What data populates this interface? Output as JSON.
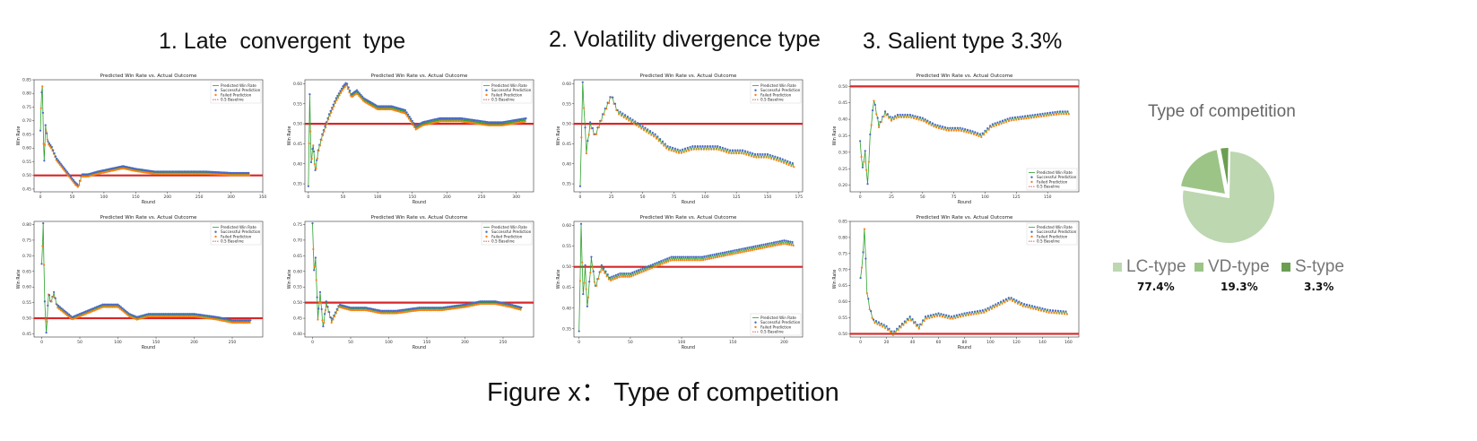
{
  "sections": [
    {
      "title": "1. Late  convergent  type"
    },
    {
      "title": "2. Volatility divergence type"
    },
    {
      "title": "3. Salient type 3.3%"
    }
  ],
  "caption": "Figure x： Type of competition",
  "pie": {
    "title": "Type of competition",
    "legend": [
      {
        "label": "LC-type",
        "pct": "77.4%",
        "color": "#bdd7b0"
      },
      {
        "label": "VD-type",
        "pct": "19.3%",
        "color": "#9cc487"
      },
      {
        "label": "S-type",
        "pct": "3.3%",
        "color": "#6b9e52"
      }
    ]
  },
  "colors": {
    "line": "#2ca02c",
    "success": "#4a68c8",
    "failed": "#ff7f0e",
    "baseline": "#d62728"
  },
  "chart_data": [
    {
      "type": "line",
      "title": "Predicted Win Rate vs. Actual Outcome",
      "xlabel": "Round",
      "ylabel": "Win Rate",
      "xlim": [
        -10,
        350
      ],
      "ylim": [
        0.44,
        0.85
      ],
      "xticks": [
        0,
        50,
        100,
        150,
        200,
        250,
        300,
        350
      ],
      "yticks": [
        0.45,
        0.5,
        0.55,
        0.6,
        0.65,
        0.7,
        0.75,
        0.8,
        0.85
      ],
      "legend_position": "top-right",
      "legend": [
        "Predicted Win Rate",
        "Successful Prediction",
        "Failed Prediction",
        "0.5 Baseline"
      ],
      "baseline": 0.5,
      "n": 330,
      "keypoints": [
        [
          0,
          0.66
        ],
        [
          1,
          0.75
        ],
        [
          2,
          0.8
        ],
        [
          3,
          0.83
        ],
        [
          5,
          0.62
        ],
        [
          6,
          0.55
        ],
        [
          8,
          0.68
        ],
        [
          12,
          0.62
        ],
        [
          18,
          0.6
        ],
        [
          25,
          0.56
        ],
        [
          35,
          0.53
        ],
        [
          45,
          0.5
        ],
        [
          55,
          0.47
        ],
        [
          60,
          0.46
        ],
        [
          65,
          0.5
        ],
        [
          75,
          0.5
        ],
        [
          90,
          0.51
        ],
        [
          110,
          0.52
        ],
        [
          130,
          0.53
        ],
        [
          150,
          0.52
        ],
        [
          180,
          0.51
        ],
        [
          220,
          0.51
        ],
        [
          260,
          0.51
        ],
        [
          300,
          0.505
        ],
        [
          330,
          0.505
        ]
      ]
    },
    {
      "type": "line",
      "title": "Predicted Win Rate vs. Actual Outcome",
      "xlabel": "Round",
      "ylabel": "Win Rate",
      "xlim": [
        -5,
        325
      ],
      "ylim": [
        0.33,
        0.61
      ],
      "xticks": [
        0,
        50,
        100,
        150,
        200,
        250,
        300
      ],
      "yticks": [
        0.35,
        0.4,
        0.45,
        0.5,
        0.55,
        0.6
      ],
      "legend_position": "top-right",
      "legend": [
        "Predicted Win Rate",
        "Successful Prediction",
        "Failed Prediction",
        "0.5 Baseline"
      ],
      "baseline": 0.5,
      "n": 315,
      "keypoints": [
        [
          0,
          0.34
        ],
        [
          2,
          0.57
        ],
        [
          4,
          0.4
        ],
        [
          7,
          0.45
        ],
        [
          10,
          0.38
        ],
        [
          14,
          0.43
        ],
        [
          20,
          0.47
        ],
        [
          30,
          0.52
        ],
        [
          40,
          0.56
        ],
        [
          50,
          0.59
        ],
        [
          55,
          0.6
        ],
        [
          62,
          0.57
        ],
        [
          70,
          0.58
        ],
        [
          80,
          0.56
        ],
        [
          90,
          0.55
        ],
        [
          100,
          0.54
        ],
        [
          120,
          0.54
        ],
        [
          140,
          0.53
        ],
        [
          155,
          0.49
        ],
        [
          165,
          0.5
        ],
        [
          190,
          0.51
        ],
        [
          220,
          0.51
        ],
        [
          260,
          0.5
        ],
        [
          280,
          0.5
        ],
        [
          315,
          0.51
        ]
      ]
    },
    {
      "type": "line",
      "title": "Predicted Win Rate vs. Actual Outcome",
      "xlabel": "Round",
      "ylabel": "Win Rate",
      "xlim": [
        -5,
        178
      ],
      "ylim": [
        0.33,
        0.61
      ],
      "xticks": [
        0,
        25,
        50,
        75,
        100,
        125,
        150,
        175
      ],
      "yticks": [
        0.35,
        0.4,
        0.45,
        0.5,
        0.55,
        0.6
      ],
      "legend_position": "top-right",
      "legend": [
        "Predicted Win Rate",
        "Successful Prediction",
        "Failed Prediction",
        "0.5 Baseline"
      ],
      "baseline": 0.5,
      "n": 172,
      "keypoints": [
        [
          0,
          0.34
        ],
        [
          2,
          0.6
        ],
        [
          5,
          0.43
        ],
        [
          8,
          0.5
        ],
        [
          12,
          0.47
        ],
        [
          18,
          0.52
        ],
        [
          25,
          0.57
        ],
        [
          30,
          0.53
        ],
        [
          40,
          0.51
        ],
        [
          50,
          0.49
        ],
        [
          60,
          0.47
        ],
        [
          70,
          0.44
        ],
        [
          80,
          0.43
        ],
        [
          90,
          0.44
        ],
        [
          100,
          0.44
        ],
        [
          110,
          0.44
        ],
        [
          120,
          0.43
        ],
        [
          130,
          0.43
        ],
        [
          140,
          0.42
        ],
        [
          150,
          0.42
        ],
        [
          160,
          0.41
        ],
        [
          172,
          0.395
        ]
      ]
    },
    {
      "type": "line",
      "title": "Predicted Win Rate vs. Actual Outcome",
      "xlabel": "Round",
      "ylabel": "Win Rate",
      "xlim": [
        -8,
        175
      ],
      "ylim": [
        0.18,
        0.52
      ],
      "xticks": [
        0,
        25,
        50,
        75,
        100,
        125,
        150
      ],
      "yticks": [
        0.2,
        0.25,
        0.3,
        0.35,
        0.4,
        0.45,
        0.5
      ],
      "legend_position": "bottom-right",
      "legend": [
        "Predicted Win Rate",
        "Successful Prediction",
        "Failed Prediction",
        "0.5 Baseline"
      ],
      "baseline": 0.5,
      "n": 168,
      "keypoints": [
        [
          0,
          0.33
        ],
        [
          2,
          0.25
        ],
        [
          4,
          0.3
        ],
        [
          6,
          0.2
        ],
        [
          8,
          0.35
        ],
        [
          11,
          0.46
        ],
        [
          15,
          0.38
        ],
        [
          20,
          0.42
        ],
        [
          25,
          0.4
        ],
        [
          30,
          0.41
        ],
        [
          40,
          0.41
        ],
        [
          50,
          0.4
        ],
        [
          60,
          0.38
        ],
        [
          70,
          0.37
        ],
        [
          80,
          0.37
        ],
        [
          90,
          0.36
        ],
        [
          97,
          0.35
        ],
        [
          105,
          0.38
        ],
        [
          120,
          0.4
        ],
        [
          140,
          0.41
        ],
        [
          160,
          0.42
        ],
        [
          168,
          0.42
        ]
      ]
    },
    {
      "type": "line",
      "title": "Predicted Win Rate vs. Actual Outcome",
      "xlabel": "Round",
      "ylabel": "Win Rate",
      "xlim": [
        -10,
        290
      ],
      "ylim": [
        0.44,
        0.81
      ],
      "xticks": [
        0,
        50,
        100,
        150,
        200,
        250
      ],
      "yticks": [
        0.45,
        0.5,
        0.55,
        0.6,
        0.65,
        0.7,
        0.75,
        0.8
      ],
      "legend_position": "top-right",
      "legend": [
        "Predicted Win Rate",
        "Successful Prediction",
        "Failed Prediction",
        "0.5 Baseline"
      ],
      "baseline": 0.5,
      "n": 275,
      "keypoints": [
        [
          0,
          0.67
        ],
        [
          2,
          0.8
        ],
        [
          4,
          0.55
        ],
        [
          6,
          0.45
        ],
        [
          9,
          0.58
        ],
        [
          12,
          0.55
        ],
        [
          16,
          0.58
        ],
        [
          20,
          0.54
        ],
        [
          30,
          0.52
        ],
        [
          40,
          0.5
        ],
        [
          50,
          0.51
        ],
        [
          60,
          0.52
        ],
        [
          80,
          0.54
        ],
        [
          100,
          0.54
        ],
        [
          115,
          0.51
        ],
        [
          125,
          0.5
        ],
        [
          140,
          0.51
        ],
        [
          170,
          0.51
        ],
        [
          200,
          0.51
        ],
        [
          230,
          0.5
        ],
        [
          250,
          0.49
        ],
        [
          275,
          0.49
        ]
      ]
    },
    {
      "type": "line",
      "title": "Predicted Win Rate vs. Actual Outcome",
      "xlabel": "Round",
      "ylabel": "Win Rate",
      "xlim": [
        -10,
        290
      ],
      "ylim": [
        0.39,
        0.76
      ],
      "xticks": [
        0,
        50,
        100,
        150,
        200,
        250
      ],
      "yticks": [
        0.4,
        0.45,
        0.5,
        0.55,
        0.6,
        0.65,
        0.7,
        0.75
      ],
      "legend_position": "top-right",
      "legend": [
        "Predicted Win Rate",
        "Successful Prediction",
        "Failed Prediction",
        "0.5 Baseline"
      ],
      "baseline": 0.5,
      "n": 275,
      "keypoints": [
        [
          0,
          0.75
        ],
        [
          2,
          0.6
        ],
        [
          4,
          0.64
        ],
        [
          7,
          0.45
        ],
        [
          10,
          0.53
        ],
        [
          14,
          0.42
        ],
        [
          18,
          0.5
        ],
        [
          25,
          0.44
        ],
        [
          35,
          0.49
        ],
        [
          50,
          0.48
        ],
        [
          70,
          0.48
        ],
        [
          90,
          0.47
        ],
        [
          110,
          0.47
        ],
        [
          140,
          0.48
        ],
        [
          170,
          0.48
        ],
        [
          200,
          0.49
        ],
        [
          220,
          0.5
        ],
        [
          240,
          0.5
        ],
        [
          260,
          0.49
        ],
        [
          275,
          0.48
        ]
      ]
    },
    {
      "type": "line",
      "title": "Predicted Win Rate vs. Actual Outcome",
      "xlabel": "Round",
      "ylabel": "Win Rate",
      "xlim": [
        -5,
        218
      ],
      "ylim": [
        0.33,
        0.61
      ],
      "xticks": [
        0,
        50,
        100,
        150,
        200
      ],
      "yticks": [
        0.35,
        0.4,
        0.45,
        0.5,
        0.55,
        0.6
      ],
      "legend_position": "bottom-right",
      "legend": [
        "Predicted Win Rate",
        "Successful Prediction",
        "Failed Prediction",
        "0.5 Baseline"
      ],
      "baseline": 0.5,
      "n": 210,
      "keypoints": [
        [
          0,
          0.34
        ],
        [
          2,
          0.6
        ],
        [
          4,
          0.43
        ],
        [
          6,
          0.5
        ],
        [
          8,
          0.4
        ],
        [
          12,
          0.52
        ],
        [
          16,
          0.45
        ],
        [
          22,
          0.5
        ],
        [
          30,
          0.47
        ],
        [
          40,
          0.48
        ],
        [
          50,
          0.48
        ],
        [
          60,
          0.49
        ],
        [
          70,
          0.5
        ],
        [
          80,
          0.51
        ],
        [
          90,
          0.52
        ],
        [
          100,
          0.52
        ],
        [
          120,
          0.52
        ],
        [
          140,
          0.53
        ],
        [
          160,
          0.54
        ],
        [
          180,
          0.55
        ],
        [
          200,
          0.56
        ],
        [
          210,
          0.555
        ]
      ]
    },
    {
      "type": "line",
      "title": "Predicted Win Rate vs. Actual Outcome",
      "xlabel": "Round",
      "ylabel": "Win Rate",
      "xlim": [
        -8,
        168
      ],
      "ylim": [
        0.49,
        0.85
      ],
      "xticks": [
        0,
        20,
        40,
        60,
        80,
        100,
        120,
        140,
        160
      ],
      "yticks": [
        0.5,
        0.55,
        0.6,
        0.65,
        0.7,
        0.75,
        0.8,
        0.85
      ],
      "legend_position": "top-right",
      "legend": [
        "Predicted Win Rate",
        "Successful Prediction",
        "Failed Prediction",
        "0.5 Baseline"
      ],
      "baseline": 0.5,
      "n": 160,
      "keypoints": [
        [
          0,
          0.67
        ],
        [
          2,
          0.75
        ],
        [
          3,
          0.83
        ],
        [
          5,
          0.63
        ],
        [
          7,
          0.58
        ],
        [
          10,
          0.54
        ],
        [
          15,
          0.53
        ],
        [
          20,
          0.52
        ],
        [
          25,
          0.5
        ],
        [
          30,
          0.52
        ],
        [
          38,
          0.55
        ],
        [
          45,
          0.52
        ],
        [
          50,
          0.55
        ],
        [
          60,
          0.56
        ],
        [
          70,
          0.55
        ],
        [
          80,
          0.56
        ],
        [
          95,
          0.57
        ],
        [
          110,
          0.6
        ],
        [
          115,
          0.61
        ],
        [
          125,
          0.59
        ],
        [
          135,
          0.58
        ],
        [
          145,
          0.57
        ],
        [
          160,
          0.565
        ]
      ]
    }
  ]
}
